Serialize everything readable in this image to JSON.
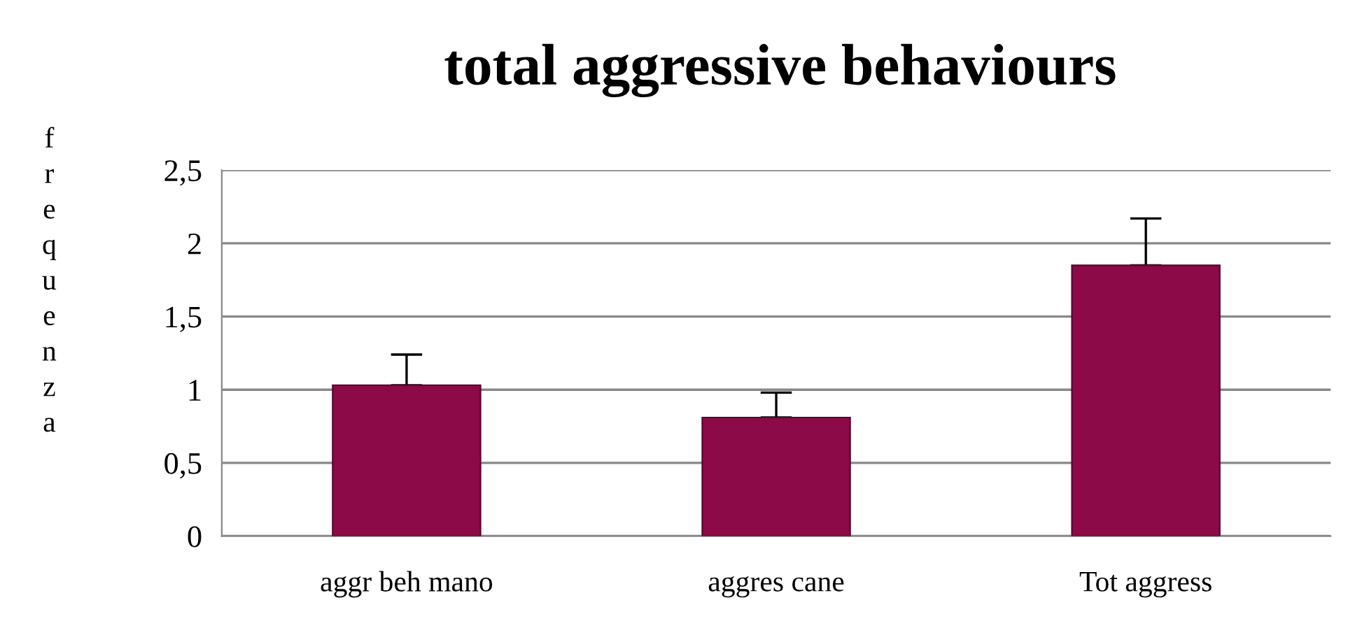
{
  "chart_data": {
    "type": "bar",
    "title": "total aggressive behaviours",
    "ylabel": "frequenza",
    "categories": [
      "aggr beh mano",
      "aggres cane",
      "Tot aggress"
    ],
    "values": [
      1.03,
      0.81,
      1.85
    ],
    "errors": [
      [
        1.03,
        1.24
      ],
      [
        0.81,
        0.98
      ],
      [
        1.85,
        2.17
      ]
    ],
    "color": "#8b0a47",
    "ylim": [
      0,
      2.5
    ],
    "yticks": [
      0,
      {
        "value": 0.5,
        "label": "0,5"
      },
      1,
      {
        "value": 1.5,
        "label": "1,5"
      },
      2,
      {
        "value": 2.5,
        "label": "2,5"
      }
    ],
    "grid": "y"
  }
}
